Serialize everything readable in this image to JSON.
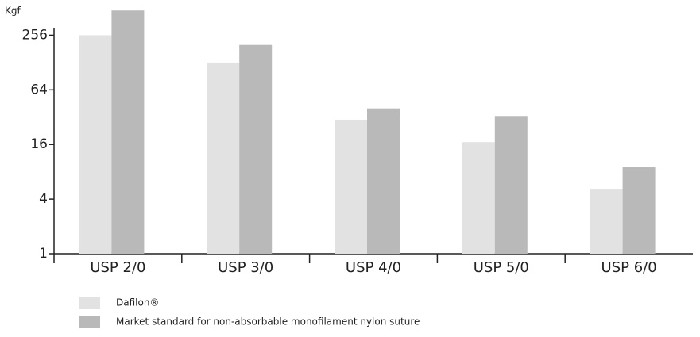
{
  "chart_data": {
    "type": "bar",
    "y_label": "Kgf",
    "categories": [
      "USP 2/0",
      "USP 3/0",
      "USP 4/0",
      "USP 5/0",
      "USP 6/0"
    ],
    "series": [
      {
        "name": "Dafilon®",
        "color": "#e2e2e2",
        "values": [
          256,
          128,
          30,
          17,
          5.2
        ]
      },
      {
        "name": "Market standard for non-absorbable monofilament nylon suture",
        "color": "#b9b9b9",
        "values": [
          480,
          200,
          40,
          33,
          9
        ]
      }
    ],
    "ylim": [
      1,
      512
    ],
    "yticks": [
      1,
      4,
      16,
      64,
      256
    ],
    "yscale": "log",
    "legend": "bottom"
  }
}
